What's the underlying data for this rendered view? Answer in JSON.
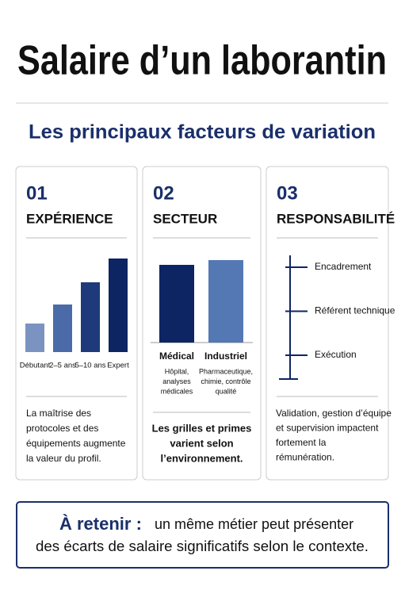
{
  "header": {
    "title": "Salaire d’un laborantin",
    "subtitle": "Les principaux facteurs de variation"
  },
  "cards": [
    {
      "number": "01",
      "title": "EXPÉRIENCE",
      "chart": {
        "categories": [
          "Débutant",
          "2–5 ans",
          "5–10 ans",
          "Expert"
        ],
        "values": [
          36,
          60,
          88,
          118
        ],
        "colors": [
          "#7b93c0",
          "#4a6aa8",
          "#1e3a7a",
          "#0d2563"
        ]
      },
      "text": [
        "La maîtrise des",
        "protocoles et des",
        "équipements augmente",
        "la valeur du profil."
      ]
    },
    {
      "number": "02",
      "title": "SECTEUR",
      "chart": {
        "categories": [
          "Médical",
          "Industriel"
        ],
        "values": [
          98,
          104
        ],
        "colors": [
          "#0d2563",
          "#5478b4"
        ],
        "details": [
          [
            "Hôpital,",
            "analyses",
            "médicales"
          ],
          [
            "Pharmaceutique,",
            "chimie, contrôle",
            "qualité"
          ]
        ]
      },
      "text": [
        "Les grilles et primes",
        "varient selon",
        "l’environnement."
      ]
    },
    {
      "number": "03",
      "title": "RESPONSABILITÉ",
      "levels": [
        "Encadrement",
        "Référent technique",
        "Exécution"
      ],
      "text": [
        "Validation, gestion d’équipe",
        "et supervision impactent",
        "fortement la",
        "rémunération."
      ]
    }
  ],
  "footer": {
    "lead": "À retenir :",
    "line1": "un même métier peut présenter",
    "line2": "des écarts de salaire significatifs selon le contexte."
  }
}
